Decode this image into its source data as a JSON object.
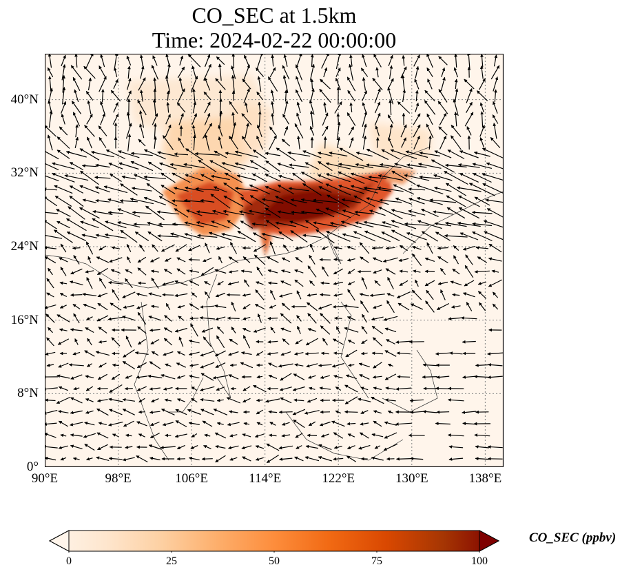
{
  "title_line1": "CO_SEC at 1.5km",
  "title_line2": "Time: 2024-02-22 00:00:00",
  "map": {
    "lon_range": [
      90,
      140
    ],
    "lat_range": [
      0,
      45
    ],
    "lat_ticks": [
      {
        "value": 40,
        "label": "40°N"
      },
      {
        "value": 32,
        "label": "32°N"
      },
      {
        "value": 24,
        "label": "24°N"
      },
      {
        "value": 16,
        "label": "16°N"
      },
      {
        "value": 8,
        "label": "8°N"
      },
      {
        "value": 0,
        "label": "0°"
      }
    ],
    "lon_ticks": [
      {
        "value": 90,
        "label": "90°E"
      },
      {
        "value": 98,
        "label": "98°E"
      },
      {
        "value": 106,
        "label": "106°E"
      },
      {
        "value": 114,
        "label": "114°E"
      },
      {
        "value": 122,
        "label": "122°E"
      },
      {
        "value": 130,
        "label": "130°E"
      },
      {
        "value": 138,
        "label": "138°E"
      }
    ],
    "background_color": "#fff5eb",
    "gridline_color": "#808080"
  },
  "colorbar": {
    "label": "CO_SEC (ppbv)",
    "min": 0,
    "max": 100,
    "ticks": [
      {
        "value": 0,
        "label": "0"
      },
      {
        "value": 25,
        "label": "25"
      },
      {
        "value": 50,
        "label": "50"
      },
      {
        "value": 75,
        "label": "75"
      },
      {
        "value": 100,
        "label": "100"
      }
    ],
    "colors": [
      "#fff5eb",
      "#fee6ce",
      "#fdd0a2",
      "#fdae6b",
      "#fd8d3c",
      "#f16913",
      "#d94801",
      "#a63603",
      "#7f0000"
    ]
  }
}
